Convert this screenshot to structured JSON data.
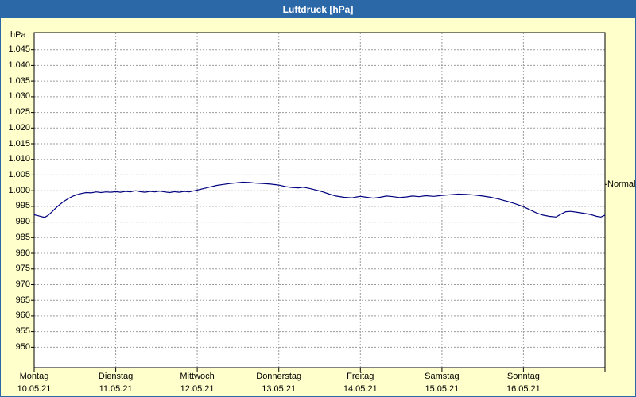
{
  "window": {
    "title": "Luftdruck [hPa]"
  },
  "colors": {
    "background": "#ffffcc",
    "titlebar": "#2a68a8",
    "plot_bg": "#ffffff",
    "plot_border": "#000000",
    "grid": "#9a9a9a",
    "line": "#000080",
    "text": "#000000",
    "title_text": "#ffffff"
  },
  "chart_data": {
    "type": "line",
    "title": "Luftdruck [hPa]",
    "ylabel": "hPa",
    "xlabel": "",
    "grid": true,
    "ylim": [
      943.5,
      1050.5
    ],
    "ytick_step": 5,
    "yticks": [
      {
        "value": 1045,
        "label": "1.045"
      },
      {
        "value": 1040,
        "label": "1.040"
      },
      {
        "value": 1035,
        "label": "1.035"
      },
      {
        "value": 1030,
        "label": "1.030"
      },
      {
        "value": 1025,
        "label": "1.025"
      },
      {
        "value": 1020,
        "label": "1.020"
      },
      {
        "value": 1015,
        "label": "1.015"
      },
      {
        "value": 1010,
        "label": "1.010"
      },
      {
        "value": 1005,
        "label": "1.005"
      },
      {
        "value": 1000,
        "label": "1.000"
      },
      {
        "value": 995,
        "label": "995"
      },
      {
        "value": 990,
        "label": "990"
      },
      {
        "value": 985,
        "label": "985"
      },
      {
        "value": 980,
        "label": "980"
      },
      {
        "value": 975,
        "label": "975"
      },
      {
        "value": 970,
        "label": "970"
      },
      {
        "value": 965,
        "label": "965"
      },
      {
        "value": 960,
        "label": "960"
      },
      {
        "value": 955,
        "label": "955"
      },
      {
        "value": 950,
        "label": "950"
      }
    ],
    "x_categories": [
      {
        "name": "Montag",
        "date": "10.05.21"
      },
      {
        "name": "Dienstag",
        "date": "11.05.21"
      },
      {
        "name": "Mittwoch",
        "date": "12.05.21"
      },
      {
        "name": "Donnerstag",
        "date": "13.05.21"
      },
      {
        "name": "Freitag",
        "date": "14.05.21"
      },
      {
        "name": "Samstag",
        "date": "15.05.21"
      },
      {
        "name": "Sonntag",
        "date": "16.05.21"
      }
    ],
    "normal_marker": {
      "label": "Normal",
      "value": 1002
    },
    "series": [
      {
        "name": "Luftdruck",
        "color": "#000080",
        "points": [
          [
            0.0,
            992.3
          ],
          [
            0.05,
            992.0
          ],
          [
            0.09,
            991.7
          ],
          [
            0.13,
            991.5
          ],
          [
            0.17,
            992.1
          ],
          [
            0.22,
            993.3
          ],
          [
            0.27,
            994.6
          ],
          [
            0.32,
            995.7
          ],
          [
            0.37,
            996.7
          ],
          [
            0.42,
            997.5
          ],
          [
            0.47,
            998.2
          ],
          [
            0.52,
            998.7
          ],
          [
            0.58,
            999.1
          ],
          [
            0.64,
            999.4
          ],
          [
            0.7,
            999.3
          ],
          [
            0.76,
            999.6
          ],
          [
            0.82,
            999.4
          ],
          [
            0.88,
            999.6
          ],
          [
            0.94,
            999.5
          ],
          [
            1.0,
            999.7
          ],
          [
            1.06,
            999.5
          ],
          [
            1.12,
            999.8
          ],
          [
            1.18,
            999.6
          ],
          [
            1.24,
            1000.0
          ],
          [
            1.3,
            999.7
          ],
          [
            1.36,
            999.5
          ],
          [
            1.42,
            999.8
          ],
          [
            1.48,
            999.6
          ],
          [
            1.54,
            999.9
          ],
          [
            1.6,
            999.6
          ],
          [
            1.66,
            999.4
          ],
          [
            1.72,
            999.7
          ],
          [
            1.78,
            999.5
          ],
          [
            1.84,
            999.8
          ],
          [
            1.9,
            999.6
          ],
          [
            1.95,
            999.9
          ],
          [
            2.0,
            1000.2
          ],
          [
            2.08,
            1000.7
          ],
          [
            2.16,
            1001.2
          ],
          [
            2.24,
            1001.7
          ],
          [
            2.32,
            1002.0
          ],
          [
            2.4,
            1002.3
          ],
          [
            2.48,
            1002.5
          ],
          [
            2.56,
            1002.7
          ],
          [
            2.64,
            1002.6
          ],
          [
            2.72,
            1002.4
          ],
          [
            2.8,
            1002.3
          ],
          [
            2.9,
            1002.1
          ],
          [
            3.0,
            1001.8
          ],
          [
            3.08,
            1001.3
          ],
          [
            3.16,
            1001.0
          ],
          [
            3.24,
            1000.9
          ],
          [
            3.3,
            1001.1
          ],
          [
            3.38,
            1000.7
          ],
          [
            3.46,
            1000.2
          ],
          [
            3.54,
            999.6
          ],
          [
            3.62,
            998.9
          ],
          [
            3.7,
            998.3
          ],
          [
            3.8,
            997.9
          ],
          [
            3.9,
            997.7
          ],
          [
            3.95,
            998.0
          ],
          [
            4.0,
            998.2
          ],
          [
            4.08,
            997.9
          ],
          [
            4.16,
            997.6
          ],
          [
            4.24,
            997.9
          ],
          [
            4.32,
            998.3
          ],
          [
            4.4,
            998.1
          ],
          [
            4.48,
            997.8
          ],
          [
            4.56,
            998.0
          ],
          [
            4.64,
            998.3
          ],
          [
            4.72,
            998.1
          ],
          [
            4.8,
            998.4
          ],
          [
            4.9,
            998.2
          ],
          [
            5.0,
            998.5
          ],
          [
            5.1,
            998.7
          ],
          [
            5.2,
            998.9
          ],
          [
            5.3,
            998.8
          ],
          [
            5.4,
            998.6
          ],
          [
            5.5,
            998.3
          ],
          [
            5.6,
            997.9
          ],
          [
            5.7,
            997.3
          ],
          [
            5.8,
            996.6
          ],
          [
            5.9,
            995.8
          ],
          [
            6.0,
            994.9
          ],
          [
            6.08,
            993.9
          ],
          [
            6.16,
            992.9
          ],
          [
            6.24,
            992.2
          ],
          [
            6.32,
            991.8
          ],
          [
            6.4,
            991.6
          ],
          [
            6.46,
            992.5
          ],
          [
            6.52,
            993.3
          ],
          [
            6.58,
            993.4
          ],
          [
            6.66,
            993.1
          ],
          [
            6.74,
            992.8
          ],
          [
            6.82,
            992.4
          ],
          [
            6.9,
            991.8
          ],
          [
            6.95,
            991.6
          ],
          [
            7.0,
            992.2
          ]
        ]
      }
    ]
  }
}
